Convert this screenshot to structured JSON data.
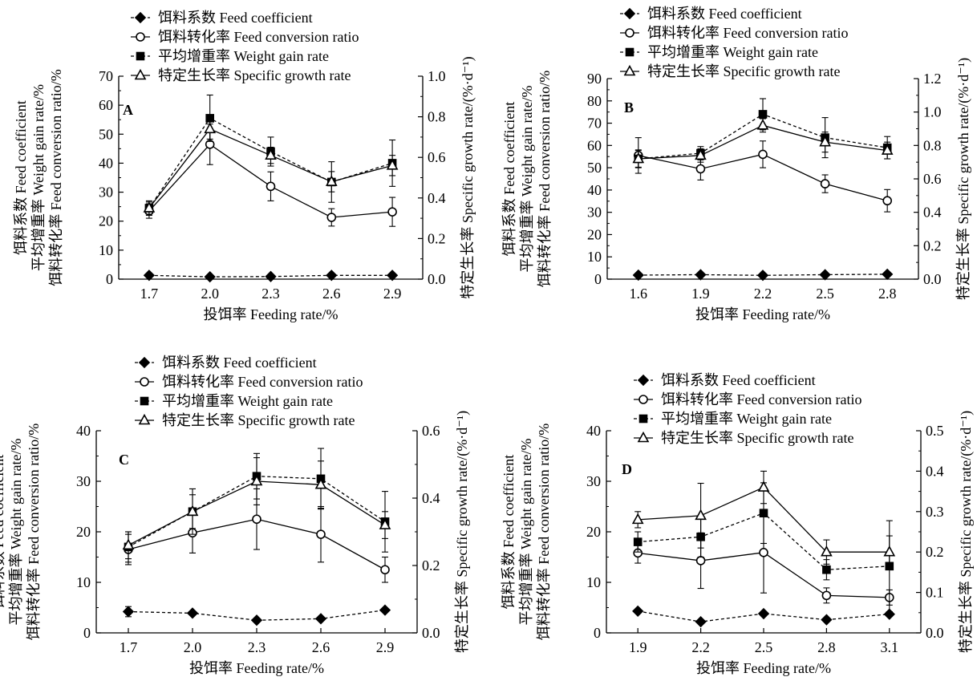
{
  "chart_data": [
    {
      "panel": "A",
      "type": "line",
      "x": [
        1.7,
        2.0,
        2.3,
        2.6,
        2.9
      ],
      "xlabel": "投饵率 Feeding rate/%",
      "ylabel_lines": [
        "饵料系数 Feed coefficient",
        "平均增重率 Weight gain rate/%",
        "饵料转化率 Feed conversion ratio/%"
      ],
      "y2label": "特定生长率 Specific growth rate/(%·d⁻¹)",
      "ylim": [
        0,
        70
      ],
      "yticks": [
        0,
        10,
        20,
        30,
        40,
        50,
        60,
        70
      ],
      "ytick_labels": [
        "0",
        "10",
        "20",
        "30",
        "40",
        "50",
        "60",
        "70"
      ],
      "y2lim": [
        0,
        1.0
      ],
      "y2ticks": [
        0,
        0.2,
        0.4,
        0.6,
        0.8,
        1.0
      ],
      "y2tick_labels": [
        "0.0",
        "0.2",
        "0.4",
        "0.6",
        "0.8",
        "1.0"
      ],
      "xtick_labels": [
        "1.7",
        "2.0",
        "2.3",
        "2.6",
        "2.9"
      ],
      "series": [
        {
          "name": "饵料系数 Feed coefficient",
          "marker": "diamond",
          "fill": true,
          "dash": true,
          "axis": "left",
          "values": [
            1.3,
            0.8,
            0.9,
            1.3,
            1.3
          ],
          "err": [
            0.3,
            0.2,
            0.2,
            0.3,
            0.3
          ]
        },
        {
          "name": "饵料转化率 Feed conversion ratio",
          "marker": "circle",
          "fill": false,
          "dash": false,
          "axis": "left",
          "values": [
            23.5,
            46.5,
            32,
            21.3,
            23.2
          ],
          "err": [
            2.5,
            7,
            5,
            3,
            5
          ]
        },
        {
          "name": "平均增重率 Weight gain rate",
          "marker": "square",
          "fill": true,
          "dash": true,
          "axis": "left",
          "values": [
            24.5,
            55.5,
            44,
            33.5,
            40
          ],
          "err": [
            2.5,
            8,
            5,
            7,
            8
          ]
        },
        {
          "name": "特定生长率 Specific growth rate",
          "marker": "triangle",
          "fill": false,
          "dash": false,
          "axis": "right",
          "values": [
            0.35,
            0.74,
            0.61,
            0.48,
            0.56
          ],
          "err": [
            0.03,
            0.05,
            0.04,
            0.05,
            0.05
          ]
        }
      ]
    },
    {
      "panel": "B",
      "type": "line",
      "x": [
        1.6,
        1.9,
        2.2,
        2.5,
        2.8
      ],
      "xlabel": "投饵率 Feeding rate/%",
      "ylabel_lines": [
        "饵料系数 Feed coefficient",
        "平均增重率 Weight gain rate/%",
        "饵料转化率 Feed conversion ratio/%"
      ],
      "y2label": "特定生长率 Specific growth rate/(%·d⁻¹)",
      "ylim": [
        0,
        90
      ],
      "yticks": [
        0,
        10,
        20,
        30,
        40,
        50,
        60,
        70,
        80,
        90
      ],
      "ytick_labels": [
        "0",
        "10",
        "20",
        "30",
        "40",
        "50",
        "60",
        "70",
        "80",
        "90"
      ],
      "y2lim": [
        0,
        1.2
      ],
      "y2ticks": [
        0,
        0.2,
        0.4,
        0.6,
        0.8,
        1.0,
        1.2
      ],
      "y2tick_labels": [
        "0.0",
        "0.2",
        "0.4",
        "0.6",
        "0.8",
        "1.0",
        "1.2"
      ],
      "xtick_labels": [
        "1.6",
        "1.9",
        "2.2",
        "2.5",
        "2.8"
      ],
      "series": [
        {
          "name": "饵料系数 Feed coefficient",
          "marker": "diamond",
          "fill": true,
          "dash": true,
          "axis": "left",
          "values": [
            1.8,
            2.0,
            1.7,
            2.0,
            2.2
          ],
          "err": [
            0.3,
            0.3,
            0.3,
            0.3,
            0.3
          ]
        },
        {
          "name": "饵料转化率 Feed conversion ratio",
          "marker": "circle",
          "fill": false,
          "dash": false,
          "axis": "left",
          "values": [
            55.5,
            49.5,
            56,
            42.8,
            35.2
          ],
          "err": [
            8,
            5,
            6,
            4,
            5
          ]
        },
        {
          "name": "平均增重率 Weight gain rate",
          "marker": "square",
          "fill": true,
          "dash": true,
          "axis": "left",
          "values": [
            54,
            56.5,
            74,
            63.5,
            59
          ],
          "err": [
            4,
            3,
            7,
            9,
            5
          ]
        },
        {
          "name": "特定生长率 Specific growth rate",
          "marker": "triangle",
          "fill": false,
          "dash": false,
          "axis": "right",
          "values": [
            0.72,
            0.74,
            0.92,
            0.82,
            0.77
          ],
          "err": [
            0.05,
            0.04,
            0.04,
            0.06,
            0.05
          ]
        }
      ]
    },
    {
      "panel": "C",
      "type": "line",
      "x": [
        1.7,
        2.0,
        2.3,
        2.6,
        2.9
      ],
      "xlabel": "投饵率 Feeding rate/%",
      "ylabel_lines": [
        "饵料系数 Feed coefficient",
        "平均增重率 Weight gain rate/%",
        "饵料转化率 Feed conversion ratio/%"
      ],
      "y2label": "特定生长率 Specific growth rate/(%·d⁻¹)",
      "ylim": [
        0,
        40
      ],
      "yticks": [
        0,
        10,
        20,
        30,
        40
      ],
      "ytick_labels": [
        "0",
        "10",
        "20",
        "30",
        "40"
      ],
      "y2lim": [
        0,
        0.6
      ],
      "y2ticks": [
        0,
        0.2,
        0.4,
        0.6
      ],
      "y2tick_labels": [
        "0.0",
        "0.2",
        "0.4",
        "0.6"
      ],
      "xtick_labels": [
        "1.7",
        "2.0",
        "2.3",
        "2.6",
        "2.9"
      ],
      "series": [
        {
          "name": "饵料系数 Feed coefficient",
          "marker": "diamond",
          "fill": true,
          "dash": true,
          "axis": "left",
          "values": [
            4.2,
            3.9,
            2.5,
            2.8,
            4.5
          ],
          "err": [
            1.0,
            0.3,
            0.3,
            0.3,
            0.3
          ]
        },
        {
          "name": "饵料转化率 Feed conversion ratio",
          "marker": "circle",
          "fill": false,
          "dash": false,
          "axis": "left",
          "values": [
            16.5,
            19.8,
            22.5,
            19.5,
            12.5
          ],
          "err": [
            3,
            4,
            6,
            5.5,
            2.5
          ]
        },
        {
          "name": "平均增重率 Weight gain rate",
          "marker": "square",
          "fill": true,
          "dash": true,
          "axis": "left",
          "values": [
            17,
            24,
            31,
            30.5,
            22
          ],
          "err": [
            3,
            4.5,
            4.5,
            6,
            6
          ]
        },
        {
          "name": "特定生长率 Specific growth rate",
          "marker": "triangle",
          "fill": false,
          "dash": false,
          "axis": "right",
          "values": [
            0.26,
            0.36,
            0.45,
            0.44,
            0.32
          ],
          "err": [
            0.04,
            0.05,
            0.07,
            0.07,
            0.04
          ]
        }
      ]
    },
    {
      "panel": "D",
      "type": "line",
      "x": [
        1.9,
        2.2,
        2.5,
        2.8,
        3.1
      ],
      "xlabel": "投饵率 Feeding rate/%",
      "ylabel_lines": [
        "饵料系数 Feed coefficient",
        "平均增重率 Weight gain rate/%",
        "饵料转化率 Feed conversion ratio/%"
      ],
      "y2label": "特定生长率 Specific growth rate/(%·d⁻¹)",
      "ylim": [
        0,
        40
      ],
      "yticks": [
        0,
        10,
        20,
        30,
        40
      ],
      "ytick_labels": [
        "0",
        "10",
        "20",
        "30",
        "40"
      ],
      "y2lim": [
        0,
        0.5
      ],
      "y2ticks": [
        0,
        0.1,
        0.2,
        0.3,
        0.4,
        0.5
      ],
      "y2tick_labels": [
        "0.0",
        "0.1",
        "0.2",
        "0.3",
        "0.4",
        "0.5"
      ],
      "xtick_labels": [
        "1.9",
        "2.2",
        "2.5",
        "2.8",
        "3.1"
      ],
      "series": [
        {
          "name": "饵料系数 Feed coefficient",
          "marker": "diamond",
          "fill": true,
          "dash": true,
          "axis": "left",
          "values": [
            4.3,
            2.2,
            3.8,
            2.6,
            3.7
          ],
          "err": [
            0.3,
            0.3,
            0.3,
            0.3,
            0.3
          ]
        },
        {
          "name": "饵料转化率 Feed conversion ratio",
          "marker": "circle",
          "fill": false,
          "dash": false,
          "axis": "left",
          "values": [
            15.8,
            14.3,
            15.9,
            7.4,
            7.0
          ],
          "err": [
            2.0,
            5.5,
            8,
            1.5,
            1.5
          ]
        },
        {
          "name": "平均增重率 Weight gain rate",
          "marker": "square",
          "fill": true,
          "dash": true,
          "axis": "left",
          "values": [
            18,
            19,
            23.7,
            12.5,
            13.2
          ],
          "err": [
            2,
            4,
            6,
            2,
            9
          ]
        },
        {
          "name": "特定生长率 Specific growth rate",
          "marker": "triangle",
          "fill": false,
          "dash": false,
          "axis": "right",
          "values": [
            0.28,
            0.29,
            0.36,
            0.2,
            0.2
          ],
          "err": [
            0.02,
            0.08,
            0.04,
            0.03,
            0.04
          ]
        }
      ]
    }
  ]
}
